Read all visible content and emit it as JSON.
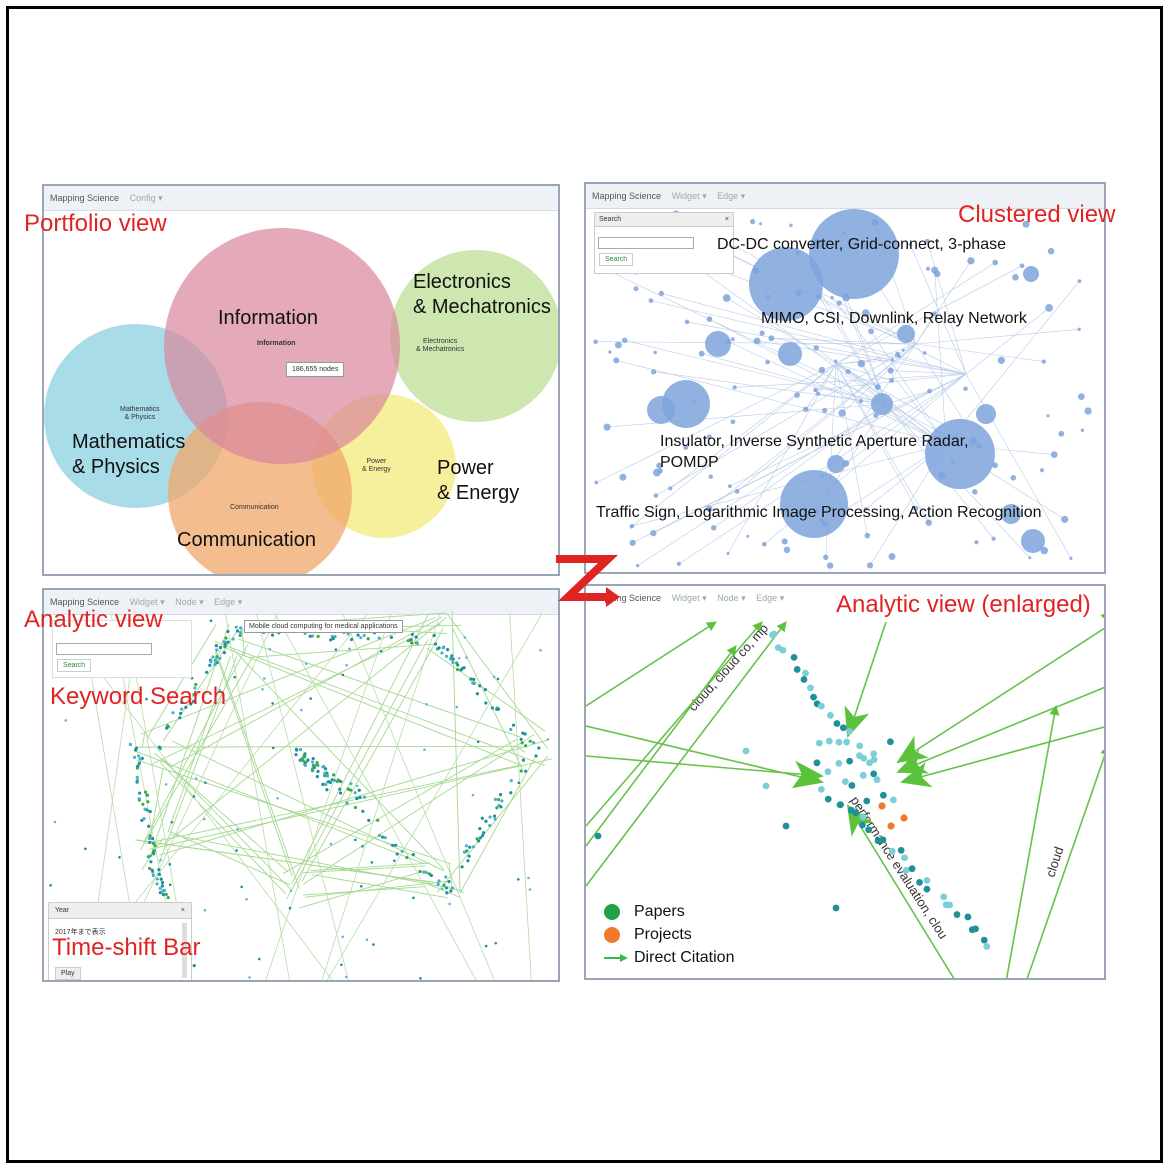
{
  "app": {
    "name": "Mapping Science"
  },
  "portfolio": {
    "label": "Portfolio view",
    "menu": [
      "Config ▾"
    ],
    "areas": [
      {
        "big": "Information",
        "small": "Information"
      },
      {
        "big": "Electronics\n& Mechatronics",
        "small": "Electronics\n& Mechatronics"
      },
      {
        "big": "Mathematics\n& Physics",
        "small": "Mathematics\n& Physics"
      },
      {
        "big": "Power\n& Energy",
        "small": "Power\n& Energy"
      },
      {
        "big": "Communication",
        "small": "Communication"
      }
    ],
    "tooltip": "186,655 nodes"
  },
  "clustered": {
    "label": "Clustered view",
    "menu": [
      "Widget ▾",
      "Edge ▾"
    ],
    "search_header": "Search",
    "search_button": "Search",
    "clusters": [
      "DC-DC converter, Grid-connect, 3-phase",
      "MIMO, CSI, Downlink, Relay Network",
      "Insulator, Inverse Synthetic Aperture Radar,\nPOMDP",
      "Traffic Sign, Logarithmic Image Processing, Action Recognition"
    ]
  },
  "analytic": {
    "label": "Analytic view",
    "menu": [
      "Widget ▾",
      "Node ▾",
      "Edge ▾"
    ],
    "search_button": "Search",
    "keyword_label": "Keyword Search",
    "tooltip": "Mobile cloud computing for medical applications",
    "timebar_label": "Time-shift Bar",
    "timebar_header": "Year",
    "timebar_text": "2017年まで表示",
    "play_button": "Play"
  },
  "enlarged": {
    "label": "Analytic view (enlarged)",
    "menu": [
      "Widget ▾",
      "Node ▾",
      "Edge ▾"
    ],
    "edge_labels": [
      "cloud, cloud co, mp",
      "performance evaluation, clou",
      "cloud"
    ],
    "legend": [
      {
        "label": "Papers",
        "color": "#1fa24a"
      },
      {
        "label": "Projects",
        "color": "#f07a2a"
      },
      {
        "label": "Direct Citation",
        "color": "#3cb84a"
      }
    ]
  },
  "colors": {
    "accent_red": "#e02424",
    "node_blue": "#7ea3dc",
    "edge_green": "#66c24a",
    "teal": "#1f8f9a"
  }
}
